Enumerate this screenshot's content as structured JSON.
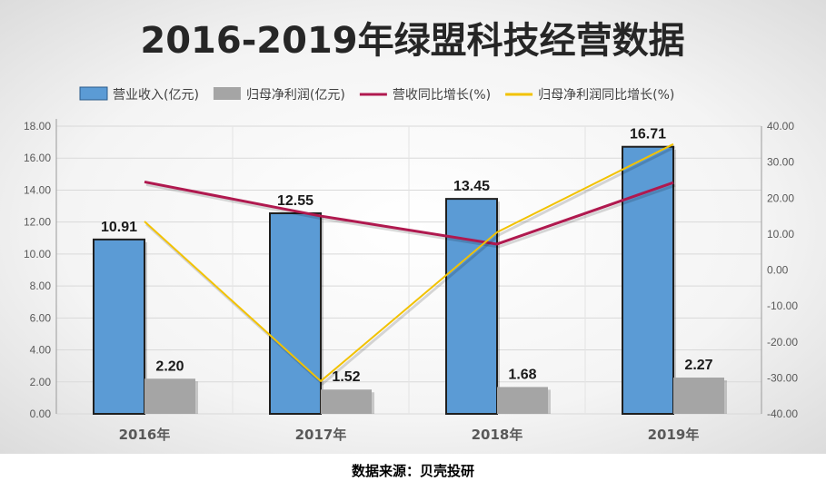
{
  "source_note": "数据来源：贝壳投研",
  "chart_data": {
    "type": "bar",
    "title": "2016-2019年绿盟科技经营数据",
    "categories": [
      "2016年",
      "2017年",
      "2018年",
      "2019年"
    ],
    "series": [
      {
        "name": "营业收入(亿元)",
        "kind": "bar",
        "axis": "left",
        "color": "#5b9bd5",
        "values": [
          10.91,
          12.55,
          13.45,
          16.71
        ],
        "labels": [
          "10.91",
          "12.55",
          "13.45",
          "16.71"
        ]
      },
      {
        "name": "归母净利润(亿元)",
        "kind": "bar",
        "axis": "left",
        "color": "#a5a5a5",
        "values": [
          2.2,
          1.52,
          1.68,
          2.27
        ],
        "labels": [
          "2.20",
          "1.52",
          "1.68",
          "2.27"
        ]
      },
      {
        "name": "营收同比增长(%)",
        "kind": "line",
        "axis": "right",
        "color": "#b0194f",
        "values": [
          24.5,
          15.0,
          7.2,
          24.3
        ]
      },
      {
        "name": "归母净利润同比增长(%)",
        "kind": "line",
        "axis": "right",
        "color": "#f2c200",
        "values": [
          13.5,
          -30.9,
          10.5,
          35.0
        ]
      }
    ],
    "y_left": {
      "min": 0,
      "max": 18,
      "step": 2,
      "ticks": [
        "0.00",
        "2.00",
        "4.00",
        "6.00",
        "8.00",
        "10.00",
        "12.00",
        "14.00",
        "16.00",
        "18.00"
      ]
    },
    "y_right": {
      "min": -40,
      "max": 40,
      "step": 10,
      "ticks": [
        "-40.00",
        "-30.00",
        "-20.00",
        "-10.00",
        "0.00",
        "10.00",
        "20.00",
        "30.00",
        "40.00"
      ]
    },
    "legend_position": "top",
    "grid": true
  }
}
